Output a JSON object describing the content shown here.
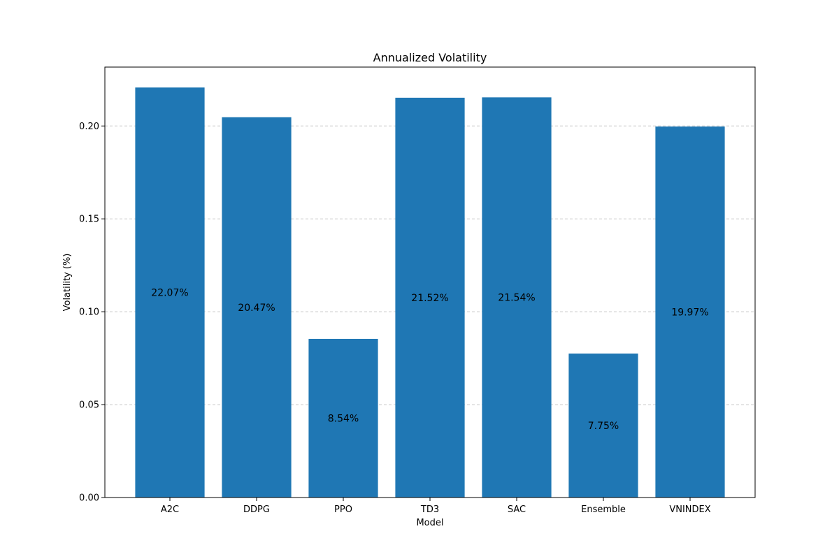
{
  "chart_data": {
    "type": "bar",
    "title": "Annualized Volatility",
    "xlabel": "Model",
    "ylabel": "Volatility (%)",
    "categories": [
      "A2C",
      "DDPG",
      "PPO",
      "TD3",
      "SAC",
      "Ensemble",
      "VNINDEX"
    ],
    "values": [
      0.2207,
      0.2047,
      0.0854,
      0.2152,
      0.2154,
      0.0775,
      0.1997
    ],
    "bar_labels": [
      "22.07%",
      "20.47%",
      "8.54%",
      "21.52%",
      "21.54%",
      "7.75%",
      "19.97%"
    ],
    "ylim": [
      0,
      0.2317
    ],
    "yticks": [
      0.0,
      0.05,
      0.1,
      0.15,
      0.2
    ],
    "ytick_labels": [
      "0.00",
      "0.05",
      "0.10",
      "0.15",
      "0.20"
    ],
    "grid": "y-dashed",
    "bar_color": "#1f77b4",
    "grid_color": "#c8c8c8"
  }
}
